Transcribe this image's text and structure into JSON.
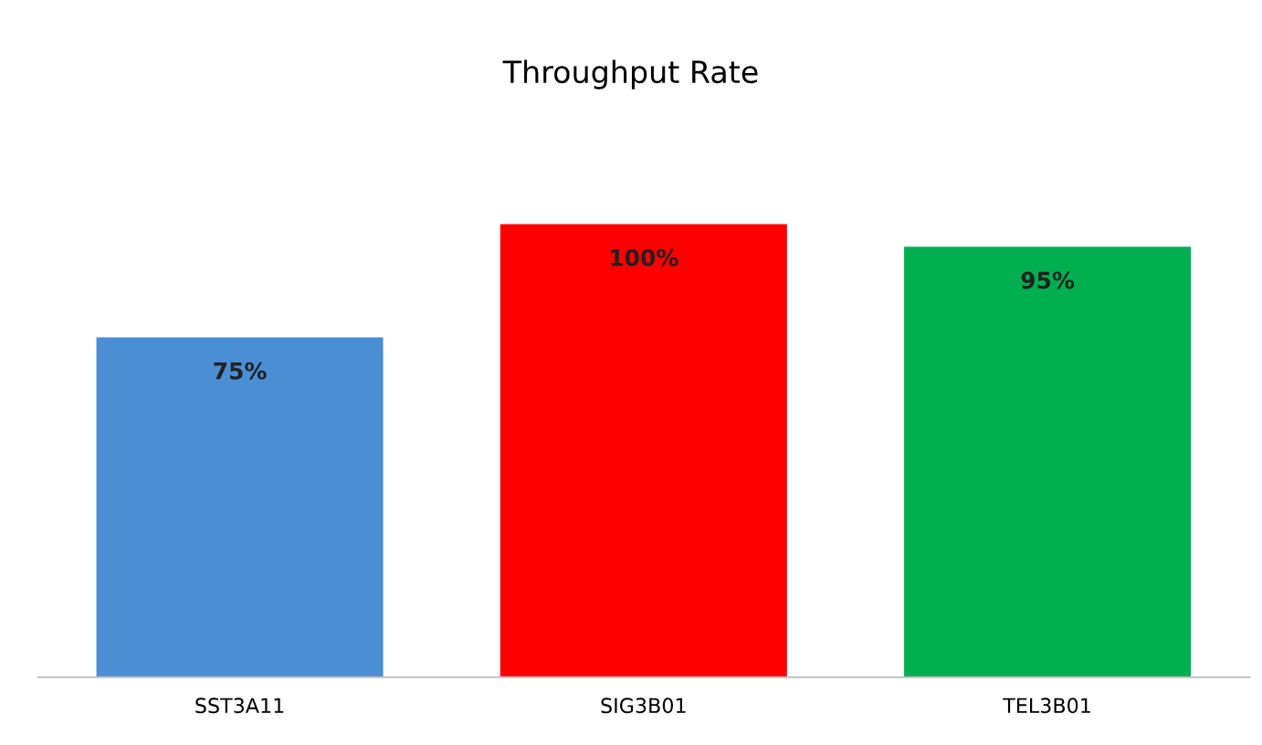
{
  "chart_data": {
    "type": "bar",
    "title": "Throughput Rate",
    "categories": [
      "SST3A11",
      "SIG3B01",
      "TEL3B01"
    ],
    "values": [
      75,
      100,
      95
    ],
    "colors": [
      "#4a8ed4",
      "#ff0000",
      "#00b050"
    ],
    "value_labels": [
      "75%",
      "100%",
      "95%"
    ],
    "grid": false,
    "legend": false
  }
}
